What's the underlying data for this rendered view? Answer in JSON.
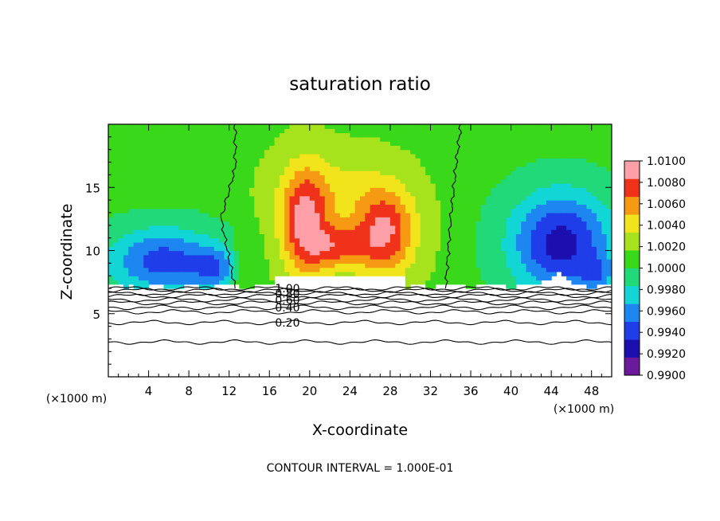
{
  "chart_data": {
    "type": "heatmap",
    "title": "saturation ratio",
    "xlabel": "X-coordinate",
    "ylabel": "Z-coordinate",
    "x_unit": "(×1000 m)",
    "footer": "CONTOUR INTERVAL = 1.000E-01",
    "xlim": [
      0,
      50
    ],
    "ylim": [
      0,
      20
    ],
    "x_ticks": [
      4,
      8,
      12,
      16,
      20,
      24,
      28,
      32,
      36,
      40,
      44,
      48
    ],
    "y_ticks": [
      5,
      10,
      15
    ],
    "colorbar": {
      "levels": [
        0.99,
        0.992,
        0.994,
        0.996,
        0.998,
        1.0,
        1.002,
        1.004,
        1.006,
        1.008,
        1.01
      ],
      "labels": [
        "0.9900",
        "0.9920",
        "0.9940",
        "0.9960",
        "0.9980",
        "1.0000",
        "1.0020",
        "1.0040",
        "1.0060",
        "1.0080",
        "1.0100"
      ],
      "colors": [
        "#6a1a9a",
        "#1c0fae",
        "#1f3de8",
        "#1d86f0",
        "#12d6d6",
        "#21d978",
        "#39d81a",
        "#a6e31d",
        "#f2e41a",
        "#f59a12",
        "#f0321a",
        "#ff9fa8"
      ]
    },
    "contour_labels": [
      {
        "value": "1.00",
        "z": 7.0
      },
      {
        "value": "0.80",
        "z": 6.6
      },
      {
        "value": "0.60",
        "z": 6.1
      },
      {
        "value": "0.40",
        "z": 5.5
      },
      {
        "value": "0.20",
        "z": 4.3
      }
    ],
    "unlabeled_contour_z": [
      6.85,
      6.4,
      5.85,
      5.15,
      2.75
    ],
    "base_cloud_z": 7.2,
    "background_value": 1.0005,
    "dry_regions": [
      {
        "x": 5.5,
        "z": 9.2,
        "sx": 5.5,
        "sz": 2.6,
        "amp": 0.0075
      },
      {
        "x": 10.5,
        "z": 8.6,
        "sx": 2.0,
        "sz": 1.6,
        "amp": 0.0045
      },
      {
        "x": 45.0,
        "z": 10.6,
        "sx": 5.0,
        "sz": 4.0,
        "amp": 0.0095
      },
      {
        "x": 48.5,
        "z": 8.2,
        "sx": 1.6,
        "sz": 1.4,
        "amp": 0.0035
      }
    ],
    "moist_regions": [
      {
        "x": 19.5,
        "z": 12.2,
        "sx": 2.4,
        "sz": 4.2,
        "amp": 0.0085
      },
      {
        "x": 27.5,
        "z": 11.5,
        "sx": 3.0,
        "sz": 3.4,
        "amp": 0.0085
      },
      {
        "x": 22.8,
        "z": 10.3,
        "sx": 3.0,
        "sz": 1.8,
        "amp": 0.006
      },
      {
        "x": 22.5,
        "z": 14.8,
        "sx": 5.5,
        "sz": 3.0,
        "amp": 0.0025
      }
    ],
    "saturation_boundary": {
      "left": [
        [
          12.6,
          7.0
        ],
        [
          11.2,
          12.5
        ],
        [
          12.6,
          16.5
        ],
        [
          12.6,
          20.0
        ]
      ],
      "right": [
        [
          33.5,
          7.0
        ],
        [
          34.0,
          12.5
        ],
        [
          34.5,
          16.5
        ],
        [
          35.0,
          20.0
        ]
      ]
    }
  }
}
